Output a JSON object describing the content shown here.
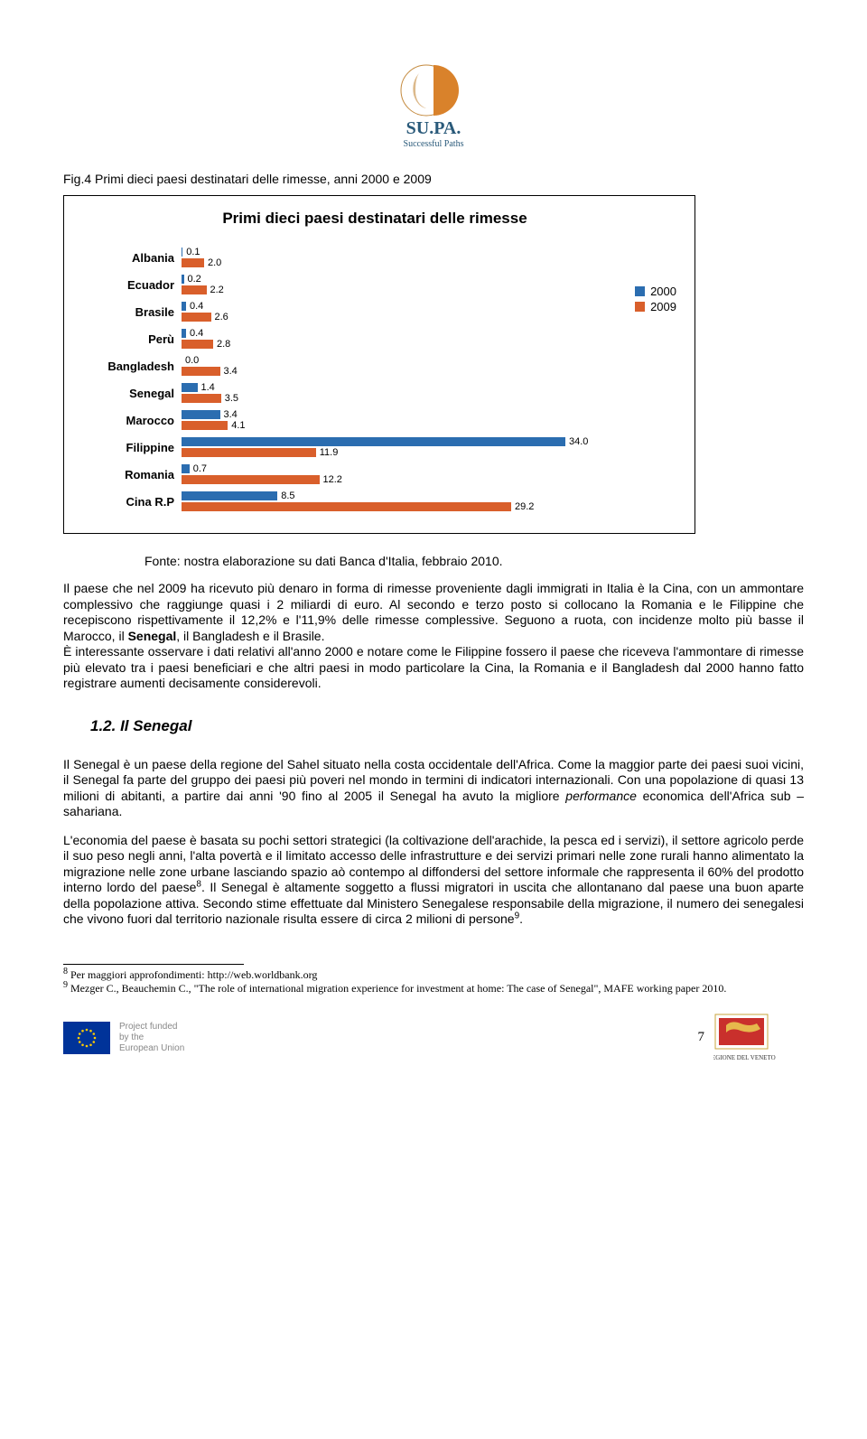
{
  "logo": {
    "brand": "SU.PA.",
    "tagline": "Successful Paths"
  },
  "figure_caption": "Fig.4 Primi dieci paesi destinatari delle rimesse, anni 2000 e 2009",
  "chart": {
    "title": "Primi dieci paesi destinatari delle rimesse",
    "type": "horizontal-bar-grouped",
    "xmax": 36,
    "categories": [
      "Albania",
      "Ecuador",
      "Brasile",
      "Perù",
      "Bangladesh",
      "Senegal",
      "Marocco",
      "Filippine",
      "Romania",
      "Cina R.P"
    ],
    "series": [
      {
        "name": "2000",
        "color": "#2b6db0",
        "values": [
          0.1,
          0.2,
          0.4,
          0.4,
          0.0,
          1.4,
          3.4,
          34.0,
          0.7,
          8.5
        ]
      },
      {
        "name": "2009",
        "color": "#d95f2b",
        "values": [
          2.0,
          2.2,
          2.6,
          2.8,
          3.4,
          3.5,
          4.1,
          11.9,
          12.2,
          29.2
        ]
      }
    ],
    "label_color": "#000",
    "label_fontsize": 11,
    "category_fontsize": 13,
    "background_color": "#ffffff",
    "border_color": "#000000"
  },
  "source": "Fonte: nostra elaborazione su dati Banca d'Italia, febbraio 2010.",
  "para1_a": "Il paese che nel 2009 ha ricevuto più denaro in forma di rimesse proveniente dagli immigrati in Italia è la Cina, con un ammontare complessivo che raggiunge quasi i 2 miliardi di euro. Al secondo e terzo posto si collocano la Romania e le Filippine che recepiscono rispettivamente il 12,2% e l'11,9% delle rimesse complessive. Seguono a ruota, con incidenze molto più basse il Marocco, il ",
  "para1_bold": "Senegal",
  "para1_b": ", il Bangladesh e il Brasile.",
  "para2": "È interessante osservare i dati relativi all'anno 2000 e  notare come le Filippine fossero il paese che riceveva l'ammontare di rimesse più elevato tra i paesi beneficiari e che altri paesi in modo particolare la Cina, la Romania e il Bangladesh dal 2000 hanno fatto registrare aumenti decisamente considerevoli.",
  "heading": "1.2.    Il Senegal",
  "para3_a": "Il Senegal è un paese della regione del Sahel situato nella costa occidentale dell'Africa. Come la maggior parte dei paesi suoi vicini, il Senegal fa parte del gruppo dei paesi più poveri nel mondo in termini di indicatori internazionali. Con una popolazione di quasi 13 milioni di abitanti, a partire dai anni '90 fino al 2005 il Senegal ha avuto la migliore ",
  "para3_it": "performance",
  "para3_b": " economica dell'Africa sub – sahariana.",
  "para4_a": "L'economia del paese è basata su pochi settori strategici (la coltivazione dell'arachide, la pesca ed i servizi), il settore agricolo perde il suo peso negli anni, l'alta povertà e il limitato accesso delle infrastrutture e dei servizi primari nelle zone rurali hanno alimentato la migrazione nelle zone urbane lasciando spazio aò contempo al diffondersi del settore informale che rappresenta il 60% del prodotto interno lordo del paese",
  "para4_sup1": "8",
  "para4_b": ". Il Senegal è altamente soggetto a flussi migratori in uscita che allontanano dal paese una buon aparte della popolazione attiva. Secondo stime effettuate dal Ministero Senegalese responsabile della migrazione, il numero dei senegalesi che vivono fuori dal territorio nazionale risulta essere di circa 2 milioni di persone",
  "para4_sup2": "9",
  "para4_c": ".",
  "fn8_sup": "8",
  "fn8": " Per maggiori approfondimenti: http://web.worldbank.org",
  "fn9_sup": "9",
  "fn9": " Mezger C., Beauchemin C., \"The role of international migration experience for investment at home: The case of   Senegal\", MAFE working paper 2010.",
  "footer": {
    "funded_l1": "Project funded",
    "funded_l2": "by the",
    "funded_l3": "European Union",
    "page": "7",
    "region": "REGIONE DEL VENETO"
  }
}
